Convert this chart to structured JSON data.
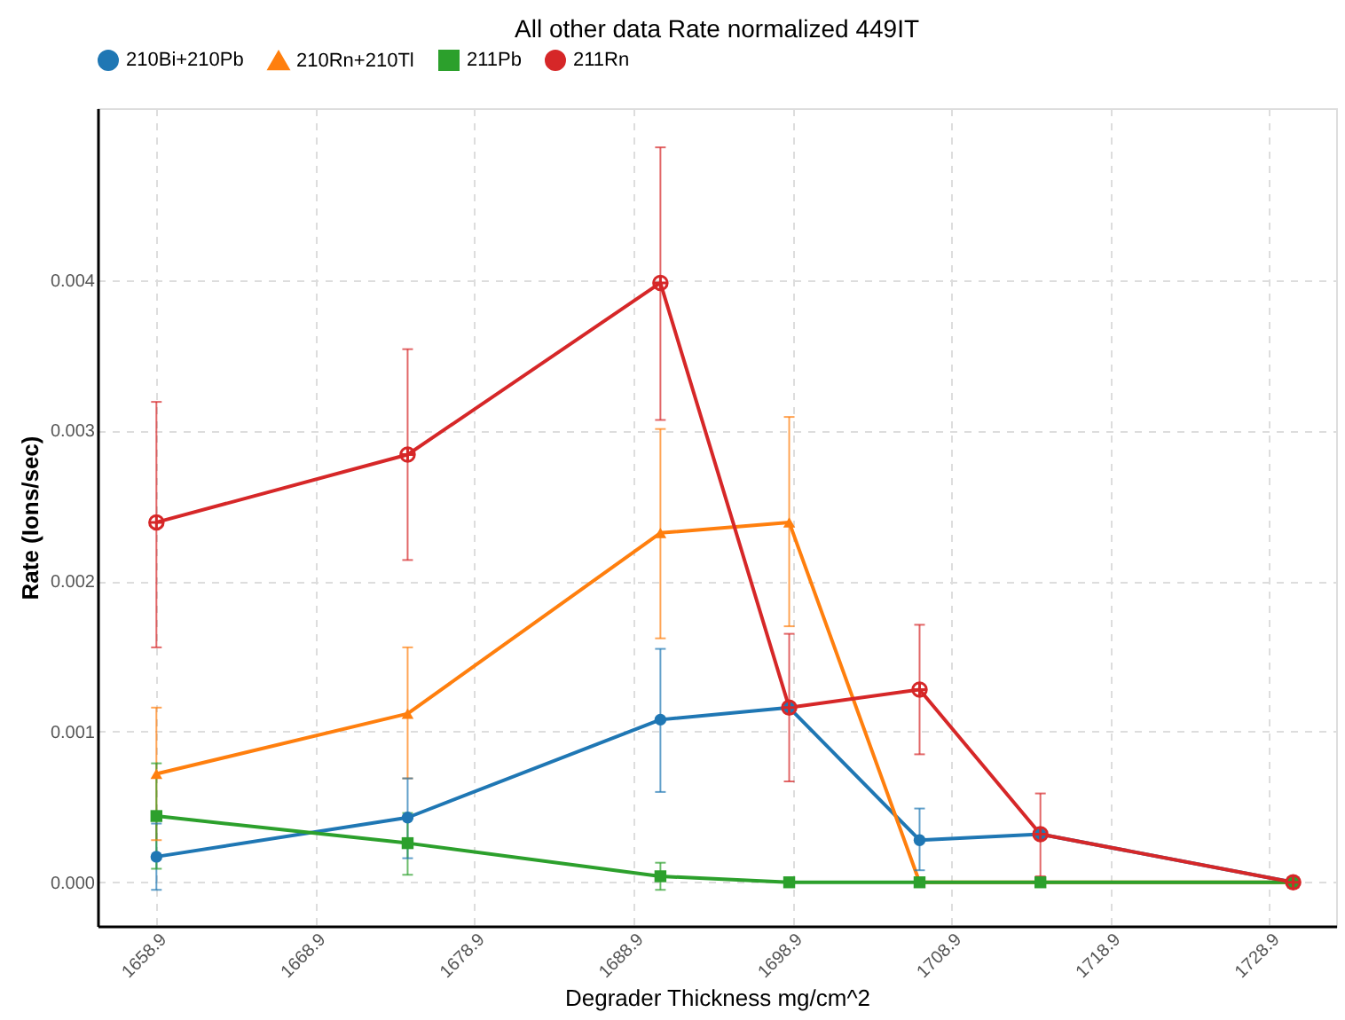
{
  "chart_data": {
    "type": "line",
    "title": "All other data Rate normalized 449IT",
    "xlabel": "Degrader Thickness mg/cm^2",
    "ylabel": "Rate (Ions/sec)",
    "x": [
      1658.9,
      1674.7,
      1690.6,
      1698.7,
      1706.9,
      1714.5,
      1730.4
    ],
    "series": [
      {
        "name": "210Bi+210Pb",
        "color": "#1f77b4",
        "marker": "circle",
        "values": [
          0.00017,
          0.00043,
          0.00108,
          0.00116,
          0.00028,
          0.00032,
          0
        ],
        "errors": [
          [
            -5e-05,
            0.00039
          ],
          [
            0.00016,
            0.00069
          ],
          [
            0.0006,
            0.00155
          ],
          null,
          [
            8e-05,
            0.00049
          ],
          null,
          null
        ]
      },
      {
        "name": "210Rn+210Tl",
        "color": "#ff7f0e",
        "marker": "triangle",
        "values": [
          0.00072,
          0.00112,
          0.00232,
          0.00239,
          0,
          0,
          0
        ],
        "errors": [
          [
            0.00028,
            0.00116
          ],
          [
            0.00069,
            0.00156
          ],
          [
            0.00162,
            0.00301
          ],
          [
            0.0017,
            0.00309
          ],
          null,
          null,
          null
        ]
      },
      {
        "name": "211Pb",
        "color": "#2ca02c",
        "marker": "square",
        "values": [
          0.00044,
          0.00026,
          4e-05,
          0,
          0,
          0,
          0
        ],
        "errors": [
          [
            9e-05,
            0.00079
          ],
          [
            5e-05,
            0.00046
          ],
          [
            -5e-05,
            0.00013
          ],
          null,
          null,
          null,
          null
        ]
      },
      {
        "name": "211Rn",
        "color": "#d62728",
        "marker": "cross",
        "values": [
          0.00239,
          0.00284,
          0.00398,
          0.00116,
          0.00128,
          0.00032,
          0
        ],
        "errors": [
          [
            0.00156,
            0.00319
          ],
          [
            0.00214,
            0.00354
          ],
          [
            0.00307,
            0.00488
          ],
          [
            0.00067,
            0.00165
          ],
          [
            0.00085,
            0.00171
          ],
          [
            4e-05,
            0.00059
          ],
          null
        ]
      }
    ],
    "xlim": [
      1655.2,
      1733.1
    ],
    "xticks": [
      1658.9,
      1668.9,
      1678.9,
      1688.9,
      1698.9,
      1708.9,
      1718.9,
      1728.9
    ],
    "ylim": [
      -0.00029,
      0.00514
    ],
    "yticks": [
      {
        "value": 0,
        "label": "0.000"
      },
      {
        "value": 0.001,
        "label": "0.001"
      },
      {
        "value": 0.002,
        "label": "0.002"
      },
      {
        "value": 0.003,
        "label": "0.003"
      },
      {
        "value": 0.004,
        "label": "0.004"
      }
    ],
    "grid": true,
    "legend": "top",
    "line_style": "solid"
  }
}
